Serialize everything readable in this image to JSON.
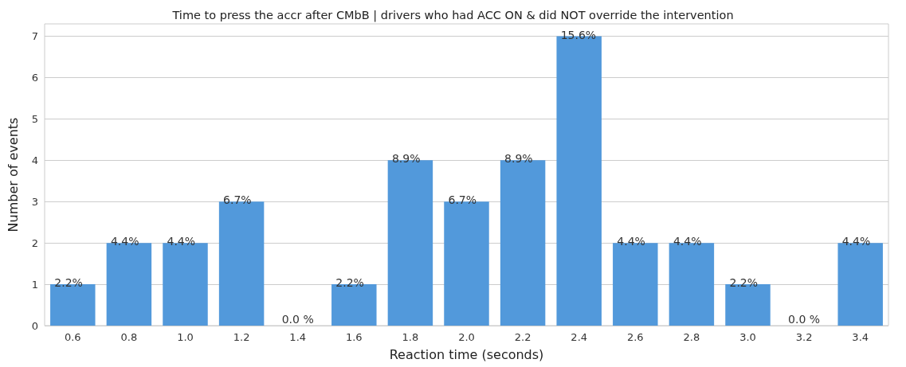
{
  "chart_data": {
    "type": "bar",
    "title": "Time to press the accr after CMbB | drivers who had ACC ON & did NOT override the intervention",
    "xlabel": "Reaction time (seconds)",
    "ylabel": "Number of events",
    "categories": [
      "0.6",
      "0.8",
      "1.0",
      "1.2",
      "1.4",
      "1.6",
      "1.8",
      "2.0",
      "2.2",
      "2.4",
      "2.6",
      "2.8",
      "3.0",
      "3.2",
      "3.4"
    ],
    "values": [
      1,
      2,
      2,
      3,
      0,
      1,
      4,
      3,
      4,
      7,
      2,
      2,
      1,
      0,
      2
    ],
    "annotations": [
      {
        "text": "2.2%",
        "x": "0.6",
        "y": 1
      },
      {
        "text": "4.4%",
        "x": "0.8",
        "y": 2
      },
      {
        "text": "4.4%",
        "x": "1.0",
        "y": 2
      },
      {
        "text": "6.7%",
        "x": "1.2",
        "y": 3
      },
      {
        "text": "0.0 %",
        "x": "1.4",
        "y": 0
      },
      {
        "text": "2.2%",
        "x": "1.6",
        "y": 1
      },
      {
        "text": "8.9%",
        "x": "1.8",
        "y": 4
      },
      {
        "text": "6.7%",
        "x": "2.0",
        "y": 3
      },
      {
        "text": "8.9%",
        "x": "2.2",
        "y": 4
      },
      {
        "text": "15.6%",
        "x": "2.4",
        "y": 7
      },
      {
        "text": "4.4%",
        "x": "2.6",
        "y": 2
      },
      {
        "text": "4.4%",
        "x": "2.8",
        "y": 2
      },
      {
        "text": "2.2%",
        "x": "3.0",
        "y": 1
      },
      {
        "text": "0.0 %",
        "x": "3.2",
        "y": 0
      },
      {
        "text": "4.4%",
        "x": "3.4",
        "y": 2
      }
    ],
    "color": "#5299db",
    "ylim": [
      0,
      7.3
    ],
    "yticks": [
      0,
      1,
      2,
      3,
      4,
      5,
      6,
      7
    ],
    "grid": "y"
  }
}
